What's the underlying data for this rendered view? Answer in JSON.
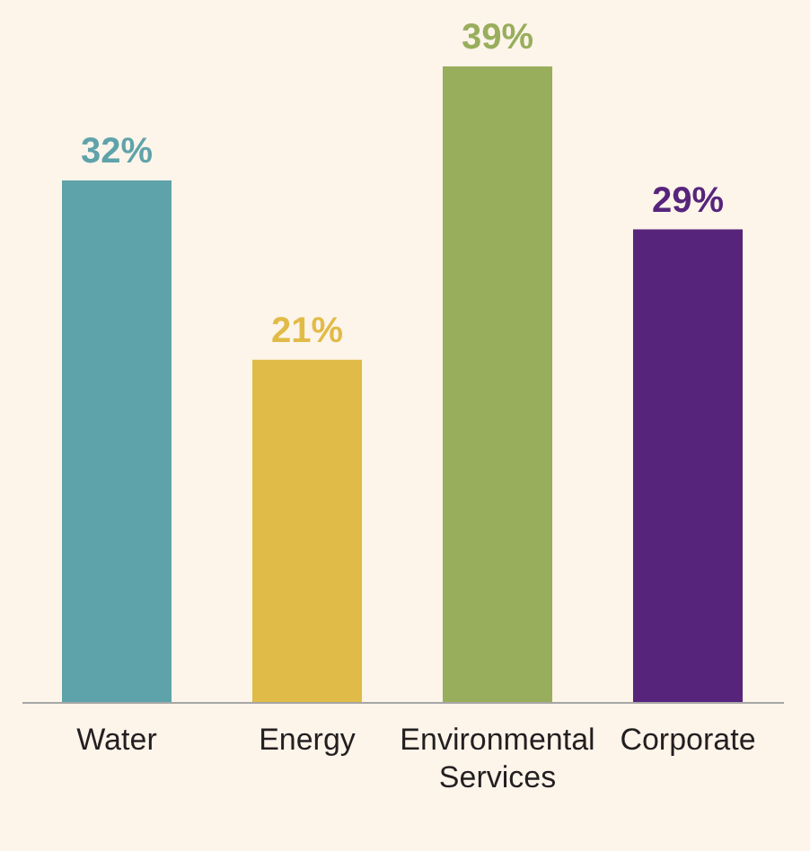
{
  "chart_data": {
    "type": "bar",
    "categories": [
      "Water",
      "Energy",
      "Environmental Services",
      "Corporate"
    ],
    "values": [
      32,
      21,
      39,
      29
    ],
    "colors": [
      "#5fa3aa",
      "#e1bb47",
      "#98ae5c",
      "#57247c"
    ],
    "value_labels": [
      "32%",
      "21%",
      "39%",
      "29%"
    ]
  }
}
